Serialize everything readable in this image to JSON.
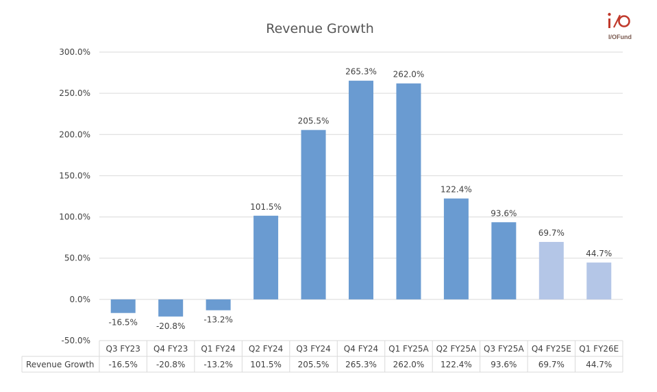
{
  "logo": {
    "text": "I/OFund",
    "accent": "#c0392b"
  },
  "colors": {
    "actual": "#6a9bd1",
    "estimate": "#b4c6e7",
    "grid": "#d9d9d9",
    "text": "#404040"
  },
  "chart_data": {
    "type": "bar",
    "title": "Revenue Growth",
    "xlabel": "",
    "ylabel": "",
    "ylim": [
      -50,
      300
    ],
    "ytick_step": 50,
    "ytick_format": "percent_1dp",
    "grid": true,
    "categories": [
      "Q3 FY23",
      "Q4 FY23",
      "Q1 FY24",
      "Q2 FY24",
      "Q3 FY24",
      "Q4 FY24",
      "Q1 FY25A",
      "Q2 FY25A",
      "Q3 FY25A",
      "Q4 FY25E",
      "Q1 FY26E"
    ],
    "series": [
      {
        "name": "Revenue Growth",
        "values": [
          -16.5,
          -20.8,
          -13.2,
          101.5,
          205.5,
          265.3,
          262.0,
          122.4,
          93.6,
          69.7,
          44.7
        ],
        "labels": [
          "-16.5%",
          "-20.8%",
          "-13.2%",
          "101.5%",
          "205.5%",
          "265.3%",
          "262.0%",
          "122.4%",
          "93.6%",
          "69.7%",
          "44.7%"
        ],
        "estimate": [
          false,
          false,
          false,
          false,
          false,
          false,
          false,
          false,
          false,
          true,
          true
        ]
      }
    ],
    "data_table": true
  }
}
